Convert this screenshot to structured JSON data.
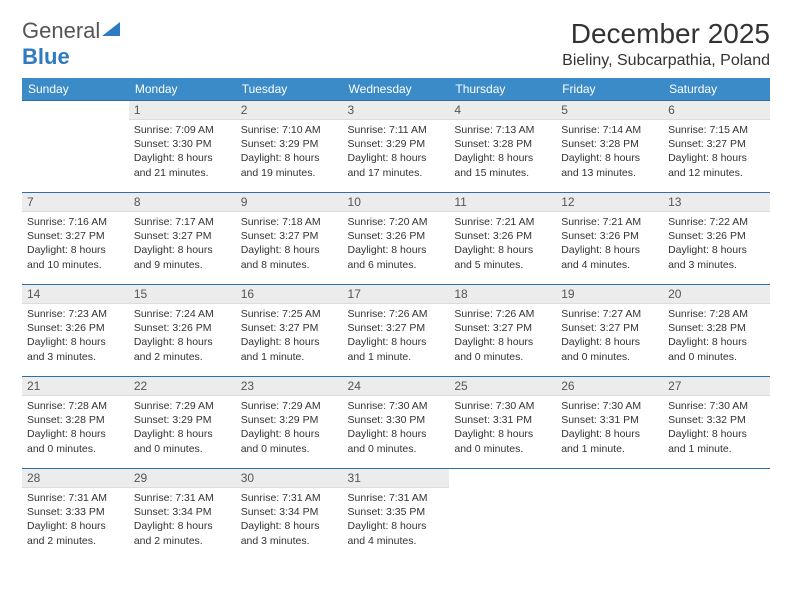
{
  "logo": {
    "general": "General",
    "blue": "Blue"
  },
  "title": "December 2025",
  "location": "Bieliny, Subcarpathia, Poland",
  "columns": [
    "Sunday",
    "Monday",
    "Tuesday",
    "Wednesday",
    "Thursday",
    "Friday",
    "Saturday"
  ],
  "colors": {
    "header_bg": "#3b8bc8",
    "header_text": "#ffffff",
    "row_border": "#2f6fa8",
    "daynum_bg": "#ececec",
    "logo_blue": "#2f7bbf"
  },
  "weeks": [
    [
      null,
      {
        "n": "1",
        "sunrise": "Sunrise: 7:09 AM",
        "sunset": "Sunset: 3:30 PM",
        "daylight1": "Daylight: 8 hours",
        "daylight2": "and 21 minutes."
      },
      {
        "n": "2",
        "sunrise": "Sunrise: 7:10 AM",
        "sunset": "Sunset: 3:29 PM",
        "daylight1": "Daylight: 8 hours",
        "daylight2": "and 19 minutes."
      },
      {
        "n": "3",
        "sunrise": "Sunrise: 7:11 AM",
        "sunset": "Sunset: 3:29 PM",
        "daylight1": "Daylight: 8 hours",
        "daylight2": "and 17 minutes."
      },
      {
        "n": "4",
        "sunrise": "Sunrise: 7:13 AM",
        "sunset": "Sunset: 3:28 PM",
        "daylight1": "Daylight: 8 hours",
        "daylight2": "and 15 minutes."
      },
      {
        "n": "5",
        "sunrise": "Sunrise: 7:14 AM",
        "sunset": "Sunset: 3:28 PM",
        "daylight1": "Daylight: 8 hours",
        "daylight2": "and 13 minutes."
      },
      {
        "n": "6",
        "sunrise": "Sunrise: 7:15 AM",
        "sunset": "Sunset: 3:27 PM",
        "daylight1": "Daylight: 8 hours",
        "daylight2": "and 12 minutes."
      }
    ],
    [
      {
        "n": "7",
        "sunrise": "Sunrise: 7:16 AM",
        "sunset": "Sunset: 3:27 PM",
        "daylight1": "Daylight: 8 hours",
        "daylight2": "and 10 minutes."
      },
      {
        "n": "8",
        "sunrise": "Sunrise: 7:17 AM",
        "sunset": "Sunset: 3:27 PM",
        "daylight1": "Daylight: 8 hours",
        "daylight2": "and 9 minutes."
      },
      {
        "n": "9",
        "sunrise": "Sunrise: 7:18 AM",
        "sunset": "Sunset: 3:27 PM",
        "daylight1": "Daylight: 8 hours",
        "daylight2": "and 8 minutes."
      },
      {
        "n": "10",
        "sunrise": "Sunrise: 7:20 AM",
        "sunset": "Sunset: 3:26 PM",
        "daylight1": "Daylight: 8 hours",
        "daylight2": "and 6 minutes."
      },
      {
        "n": "11",
        "sunrise": "Sunrise: 7:21 AM",
        "sunset": "Sunset: 3:26 PM",
        "daylight1": "Daylight: 8 hours",
        "daylight2": "and 5 minutes."
      },
      {
        "n": "12",
        "sunrise": "Sunrise: 7:21 AM",
        "sunset": "Sunset: 3:26 PM",
        "daylight1": "Daylight: 8 hours",
        "daylight2": "and 4 minutes."
      },
      {
        "n": "13",
        "sunrise": "Sunrise: 7:22 AM",
        "sunset": "Sunset: 3:26 PM",
        "daylight1": "Daylight: 8 hours",
        "daylight2": "and 3 minutes."
      }
    ],
    [
      {
        "n": "14",
        "sunrise": "Sunrise: 7:23 AM",
        "sunset": "Sunset: 3:26 PM",
        "daylight1": "Daylight: 8 hours",
        "daylight2": "and 3 minutes."
      },
      {
        "n": "15",
        "sunrise": "Sunrise: 7:24 AM",
        "sunset": "Sunset: 3:26 PM",
        "daylight1": "Daylight: 8 hours",
        "daylight2": "and 2 minutes."
      },
      {
        "n": "16",
        "sunrise": "Sunrise: 7:25 AM",
        "sunset": "Sunset: 3:27 PM",
        "daylight1": "Daylight: 8 hours",
        "daylight2": "and 1 minute."
      },
      {
        "n": "17",
        "sunrise": "Sunrise: 7:26 AM",
        "sunset": "Sunset: 3:27 PM",
        "daylight1": "Daylight: 8 hours",
        "daylight2": "and 1 minute."
      },
      {
        "n": "18",
        "sunrise": "Sunrise: 7:26 AM",
        "sunset": "Sunset: 3:27 PM",
        "daylight1": "Daylight: 8 hours",
        "daylight2": "and 0 minutes."
      },
      {
        "n": "19",
        "sunrise": "Sunrise: 7:27 AM",
        "sunset": "Sunset: 3:27 PM",
        "daylight1": "Daylight: 8 hours",
        "daylight2": "and 0 minutes."
      },
      {
        "n": "20",
        "sunrise": "Sunrise: 7:28 AM",
        "sunset": "Sunset: 3:28 PM",
        "daylight1": "Daylight: 8 hours",
        "daylight2": "and 0 minutes."
      }
    ],
    [
      {
        "n": "21",
        "sunrise": "Sunrise: 7:28 AM",
        "sunset": "Sunset: 3:28 PM",
        "daylight1": "Daylight: 8 hours",
        "daylight2": "and 0 minutes."
      },
      {
        "n": "22",
        "sunrise": "Sunrise: 7:29 AM",
        "sunset": "Sunset: 3:29 PM",
        "daylight1": "Daylight: 8 hours",
        "daylight2": "and 0 minutes."
      },
      {
        "n": "23",
        "sunrise": "Sunrise: 7:29 AM",
        "sunset": "Sunset: 3:29 PM",
        "daylight1": "Daylight: 8 hours",
        "daylight2": "and 0 minutes."
      },
      {
        "n": "24",
        "sunrise": "Sunrise: 7:30 AM",
        "sunset": "Sunset: 3:30 PM",
        "daylight1": "Daylight: 8 hours",
        "daylight2": "and 0 minutes."
      },
      {
        "n": "25",
        "sunrise": "Sunrise: 7:30 AM",
        "sunset": "Sunset: 3:31 PM",
        "daylight1": "Daylight: 8 hours",
        "daylight2": "and 0 minutes."
      },
      {
        "n": "26",
        "sunrise": "Sunrise: 7:30 AM",
        "sunset": "Sunset: 3:31 PM",
        "daylight1": "Daylight: 8 hours",
        "daylight2": "and 1 minute."
      },
      {
        "n": "27",
        "sunrise": "Sunrise: 7:30 AM",
        "sunset": "Sunset: 3:32 PM",
        "daylight1": "Daylight: 8 hours",
        "daylight2": "and 1 minute."
      }
    ],
    [
      {
        "n": "28",
        "sunrise": "Sunrise: 7:31 AM",
        "sunset": "Sunset: 3:33 PM",
        "daylight1": "Daylight: 8 hours",
        "daylight2": "and 2 minutes."
      },
      {
        "n": "29",
        "sunrise": "Sunrise: 7:31 AM",
        "sunset": "Sunset: 3:34 PM",
        "daylight1": "Daylight: 8 hours",
        "daylight2": "and 2 minutes."
      },
      {
        "n": "30",
        "sunrise": "Sunrise: 7:31 AM",
        "sunset": "Sunset: 3:34 PM",
        "daylight1": "Daylight: 8 hours",
        "daylight2": "and 3 minutes."
      },
      {
        "n": "31",
        "sunrise": "Sunrise: 7:31 AM",
        "sunset": "Sunset: 3:35 PM",
        "daylight1": "Daylight: 8 hours",
        "daylight2": "and 4 minutes."
      },
      null,
      null,
      null
    ]
  ]
}
